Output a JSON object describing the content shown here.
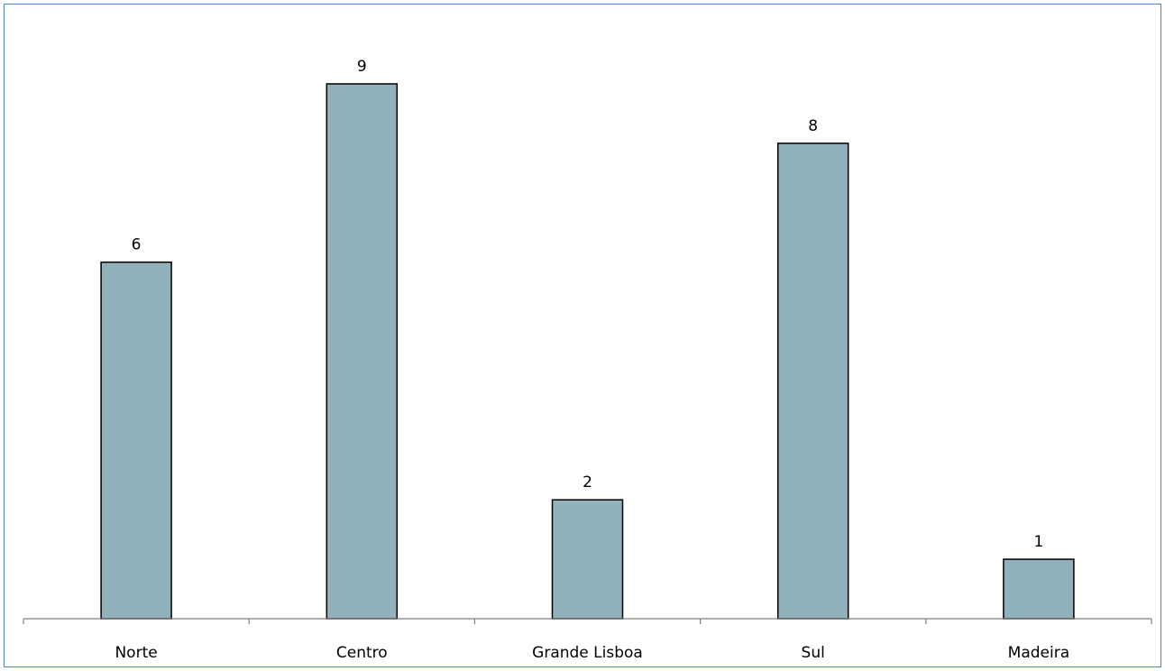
{
  "chart_data": {
    "type": "bar",
    "categories": [
      "Norte",
      "Centro",
      "Grande Lisboa",
      "Sul",
      "Madeira"
    ],
    "values": [
      6,
      9,
      2,
      8,
      1
    ],
    "data_labels": [
      "6",
      "9",
      "2",
      "8",
      "1"
    ],
    "title": "",
    "xlabel": "",
    "ylabel": "",
    "ylim": [
      0,
      9
    ],
    "grid": false,
    "legend": "none",
    "y_axis_visible": false,
    "colors": {
      "bar_fill": "#91b1bd",
      "bar_stroke": "#000000",
      "axis": "#7f7f7f",
      "frame": "#4f81bd"
    }
  }
}
